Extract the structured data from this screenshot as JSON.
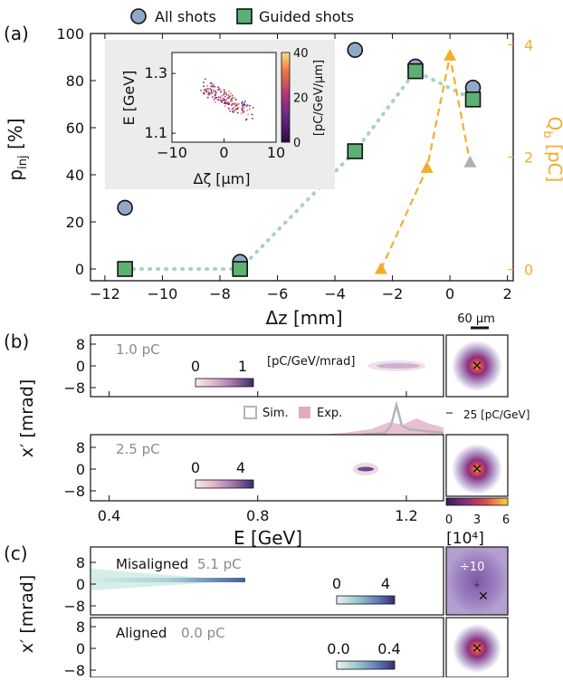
{
  "panel_labels": {
    "a": "(a)",
    "b": "(b)",
    "c": "(c)"
  },
  "chart_data": [
    {
      "type": "scatter",
      "panel": "a",
      "xlabel": "Δz [mm]",
      "ylabel": "p_inj [%]",
      "ylabel_main": "p",
      "ylabel_sub": "inj",
      "ylabel_unit": " [%]",
      "y2label": "Q_b [pC]",
      "y2label_main": "Q",
      "y2label_sub": "b",
      "y2label_unit": " [pC]",
      "xlim": [
        -12.5,
        2.2
      ],
      "ylim": [
        -5,
        100
      ],
      "y2lim": [
        -0.2,
        4.2
      ],
      "xticks": [
        "−12",
        "−10",
        "−8",
        "−6",
        "−4",
        "−2",
        "0",
        "2"
      ],
      "xtick_values": [
        -12,
        -10,
        -8,
        -6,
        -4,
        -2,
        0,
        2
      ],
      "yticks": [
        "0",
        "20",
        "40",
        "60",
        "80",
        "100"
      ],
      "ytick_values": [
        0,
        20,
        40,
        60,
        80,
        100
      ],
      "y2ticks": [
        "0",
        "2",
        "4"
      ],
      "y2tick_values": [
        0,
        2,
        4
      ],
      "legend": [
        "All shots",
        "Guided shots"
      ],
      "series": [
        {
          "name": "All shots",
          "marker": "circle",
          "color": "#91a9c9",
          "x": [
            -11.3,
            -7.3,
            -3.3,
            -1.2,
            0.8
          ],
          "y": [
            26,
            3,
            93,
            86,
            77
          ]
        },
        {
          "name": "Guided shots",
          "marker": "square",
          "color": "#5daf73",
          "fit_color": "#a8d4bb",
          "x": [
            -11.3,
            -7.3,
            -3.3,
            -1.2,
            0.8
          ],
          "y": [
            0,
            0,
            50,
            84,
            72
          ]
        },
        {
          "axis": "y2",
          "marker": "triangle",
          "color": "#f6ac2a",
          "x": [
            -2.4,
            -0.8,
            0.0
          ],
          "y": [
            0.0,
            1.8,
            3.8
          ]
        },
        {
          "axis": "y2",
          "marker": "triangle",
          "color": "#b0b0b0",
          "x": [
            0.7
          ],
          "y": [
            1.9
          ]
        }
      ]
    },
    {
      "type": "scatter",
      "panel": "a-inset",
      "xlabel": "Δζ [μm]",
      "ylabel": "E [GeV]",
      "xlim": [
        -10,
        10
      ],
      "ylim": [
        1.07,
        1.37
      ],
      "xticks": [
        "−10",
        "0",
        "10"
      ],
      "xtick_values": [
        -10,
        0,
        10
      ],
      "yticks": [
        "1.1",
        "1.3"
      ],
      "ytick_values": [
        1.1,
        1.3
      ],
      "colorbar_label": "[pC/GeV/μm]",
      "colorbar_ticks": [
        "0",
        "20",
        "40"
      ],
      "colorbar_tick_values": [
        0,
        20,
        40
      ],
      "colorbar_range": [
        0,
        40
      ]
    },
    {
      "type": "heatmap",
      "panel": "b",
      "xlabel": "E [GeV]",
      "ylabel": "x′ [mrad]",
      "xlim": [
        0.35,
        1.3
      ],
      "xticks": [
        "0.4",
        "0.8",
        "1.2"
      ],
      "xtick_values": [
        0.4,
        0.8,
        1.2
      ],
      "yticks": [
        "8",
        "0",
        "−8"
      ],
      "ytick_values": [
        8,
        0,
        -8
      ],
      "rows": [
        {
          "charge": "1.0 pC",
          "colorbar_ticks": [
            "0",
            "1"
          ],
          "colorbar_range": [
            0,
            1.3
          ]
        },
        {
          "charge": "2.5 pC",
          "colorbar_ticks": [
            "0",
            "4"
          ],
          "colorbar_range": [
            0,
            4.5
          ]
        }
      ],
      "colorbar_label": "[pC/GeV/mrad]",
      "spectrum_legend": [
        "Sim.",
        "Exp."
      ],
      "spectrum_scale": "25 [pC/GeV]",
      "scalebar": "60 μm",
      "spot_colorbar_ticks": [
        "0",
        "3",
        "6"
      ],
      "spot_colorbar_tick_values": [
        0,
        3,
        6
      ],
      "spot_colorbar_unit": "[10⁴]"
    },
    {
      "type": "heatmap",
      "panel": "c",
      "ylabel": "x′ [mrad]",
      "yticks": [
        "8",
        "0",
        "−8"
      ],
      "ytick_values": [
        8,
        0,
        -8
      ],
      "rows": [
        {
          "label": "Misaligned",
          "charge": "5.1 pC",
          "colorbar_ticks": [
            "0",
            "4"
          ],
          "spot_factor": "÷10"
        },
        {
          "label": "Aligned",
          "charge": "0.0 pC",
          "colorbar_ticks": [
            "0.0",
            "0.4"
          ]
        }
      ]
    }
  ]
}
